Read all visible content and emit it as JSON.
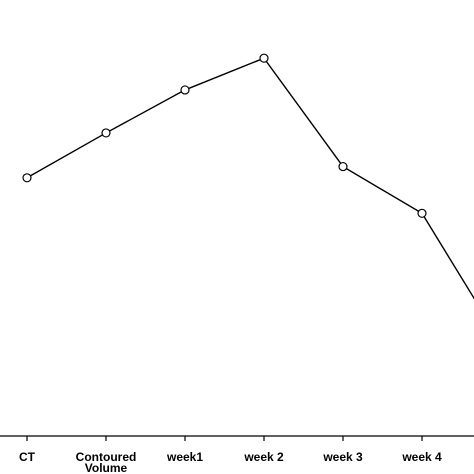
{
  "chart_data": {
    "type": "line",
    "categories": [
      "CT",
      "Contoured Volume",
      "week1",
      "week 2",
      "week 3",
      "week 4",
      ""
    ],
    "category_lines": [
      [
        "CT"
      ],
      [
        "Contoured",
        "Volume"
      ],
      [
        "week1"
      ],
      [
        "week 2"
      ],
      [
        "week 3"
      ],
      [
        "week 4"
      ],
      [
        ""
      ]
    ],
    "series": [
      {
        "values": [
          0.68,
          0.8,
          0.915,
          1.0,
          0.71,
          0.585,
          0.24
        ]
      }
    ],
    "ylim": [
      0,
      1.07
    ],
    "grid": false,
    "marker": "open-circle",
    "line_color": "#000000",
    "title": "",
    "xlabel": "",
    "ylabel": ""
  }
}
